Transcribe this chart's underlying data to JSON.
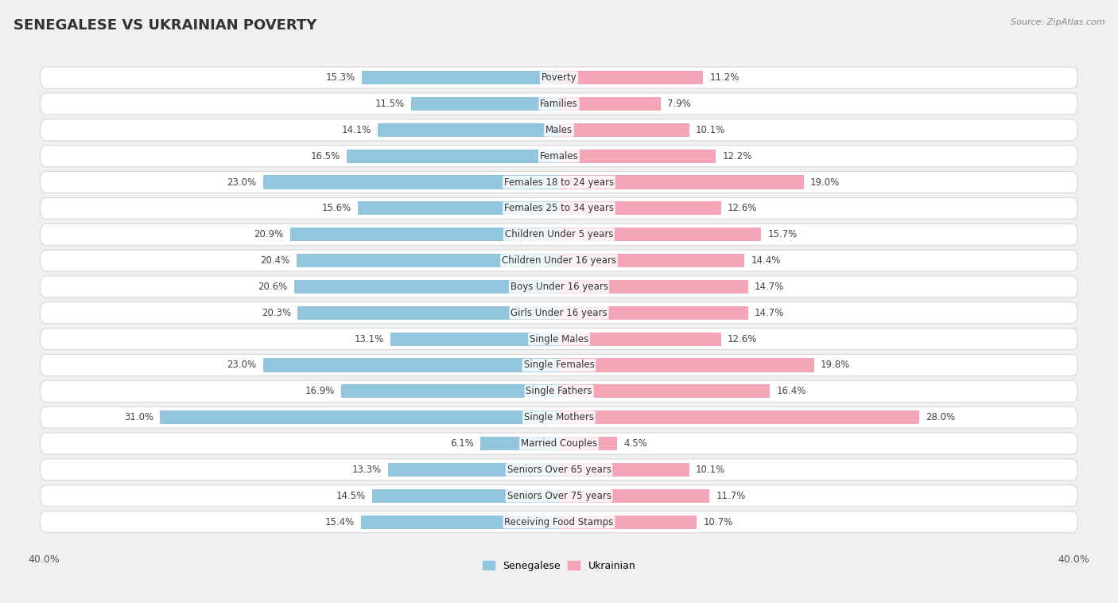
{
  "title": "SENEGALESE VS UKRAINIAN POVERTY",
  "source": "Source: ZipAtlas.com",
  "categories": [
    "Poverty",
    "Families",
    "Males",
    "Females",
    "Females 18 to 24 years",
    "Females 25 to 34 years",
    "Children Under 5 years",
    "Children Under 16 years",
    "Boys Under 16 years",
    "Girls Under 16 years",
    "Single Males",
    "Single Females",
    "Single Fathers",
    "Single Mothers",
    "Married Couples",
    "Seniors Over 65 years",
    "Seniors Over 75 years",
    "Receiving Food Stamps"
  ],
  "senegalese": [
    15.3,
    11.5,
    14.1,
    16.5,
    23.0,
    15.6,
    20.9,
    20.4,
    20.6,
    20.3,
    13.1,
    23.0,
    16.9,
    31.0,
    6.1,
    13.3,
    14.5,
    15.4
  ],
  "ukrainian": [
    11.2,
    7.9,
    10.1,
    12.2,
    19.0,
    12.6,
    15.7,
    14.4,
    14.7,
    14.7,
    12.6,
    19.8,
    16.4,
    28.0,
    4.5,
    10.1,
    11.7,
    10.7
  ],
  "senegalese_color": "#92c5de",
  "ukrainian_color": "#f4a6b8",
  "background_color": "#f0f0f0",
  "row_bg_color": "#ffffff",
  "row_border_color": "#d8d8d8",
  "xlim": 40.0,
  "title_fontsize": 13,
  "label_fontsize": 8.5,
  "value_fontsize": 8.5,
  "legend_fontsize": 9
}
